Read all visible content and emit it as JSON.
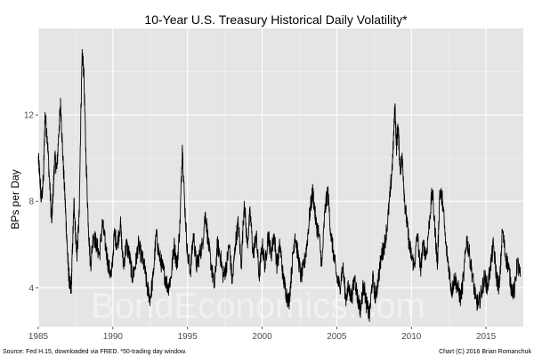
{
  "chart_data": {
    "type": "line",
    "title": "10-Year U.S. Treasury Historical Daily Volatility*",
    "xlabel": "",
    "ylabel": "BPs per Day",
    "xlim": [
      1985,
      2017.5
    ],
    "ylim": [
      2.2,
      16.0
    ],
    "x_ticks": [
      1985,
      1990,
      1995,
      2000,
      2005,
      2010,
      2015
    ],
    "x_tick_labels": [
      "1985",
      "1990",
      "1995",
      "2000",
      "2005",
      "2010",
      "2015"
    ],
    "y_ticks": [
      4,
      8,
      12
    ],
    "y_tick_labels": [
      "4",
      "8",
      "12"
    ],
    "grid": true,
    "legend": "none",
    "line_color": "#000000",
    "panel_color": "#e5e5e5",
    "series": [
      {
        "x": [
          1985.0,
          1985.1,
          1985.2,
          1985.35,
          1985.45,
          1985.6,
          1985.75,
          1985.9,
          1986.0,
          1986.1,
          1986.25,
          1986.4,
          1986.5,
          1986.65,
          1986.8,
          1986.9,
          1987.0,
          1987.1,
          1987.2,
          1987.3,
          1987.4,
          1987.5,
          1987.6,
          1987.75,
          1987.85,
          1987.95,
          1988.05,
          1988.2,
          1988.35,
          1988.5,
          1988.7,
          1988.9,
          1989.1,
          1989.3,
          1989.5,
          1989.7,
          1989.9,
          1990.1,
          1990.3,
          1990.5,
          1990.7,
          1990.9,
          1991.1,
          1991.3,
          1991.5,
          1991.7,
          1991.9,
          1992.1,
          1992.3,
          1992.5,
          1992.7,
          1992.9,
          1993.1,
          1993.3,
          1993.5,
          1993.7,
          1993.9,
          1994.1,
          1994.3,
          1994.5,
          1994.65,
          1994.8,
          1995.0,
          1995.2,
          1995.4,
          1995.6,
          1995.8,
          1996.0,
          1996.2,
          1996.4,
          1996.6,
          1996.8,
          1997.0,
          1997.2,
          1997.4,
          1997.6,
          1997.8,
          1998.0,
          1998.2,
          1998.4,
          1998.6,
          1998.8,
          1999.0,
          1999.2,
          1999.4,
          1999.6,
          1999.8,
          2000.0,
          2000.2,
          2000.4,
          2000.6,
          2000.8,
          2001.0,
          2001.2,
          2001.4,
          2001.6,
          2001.8,
          2002.0,
          2002.2,
          2002.4,
          2002.6,
          2002.8,
          2003.0,
          2003.2,
          2003.4,
          2003.6,
          2003.8,
          2004.0,
          2004.2,
          2004.4,
          2004.6,
          2004.8,
          2005.0,
          2005.2,
          2005.4,
          2005.6,
          2005.8,
          2006.0,
          2006.2,
          2006.4,
          2006.6,
          2006.8,
          2007.0,
          2007.2,
          2007.4,
          2007.6,
          2007.8,
          2008.0,
          2008.2,
          2008.4,
          2008.6,
          2008.75,
          2008.9,
          2009.0,
          2009.1,
          2009.25,
          2009.4,
          2009.55,
          2009.7,
          2009.85,
          2010.0,
          2010.2,
          2010.4,
          2010.6,
          2010.8,
          2011.0,
          2011.2,
          2011.4,
          2011.6,
          2011.75,
          2011.9,
          2012.1,
          2012.3,
          2012.5,
          2012.7,
          2012.9,
          2013.1,
          2013.3,
          2013.5,
          2013.7,
          2013.9,
          2014.1,
          2014.3,
          2014.5,
          2014.7,
          2014.9,
          2015.1,
          2015.3,
          2015.5,
          2015.7,
          2015.9,
          2016.1,
          2016.3,
          2016.5,
          2016.7,
          2016.9,
          2017.1,
          2017.3
        ],
        "y": [
          10.0,
          9.2,
          8.0,
          9.0,
          12.0,
          11.0,
          9.0,
          7.0,
          8.5,
          10.0,
          9.5,
          11.5,
          12.5,
          10.0,
          8.0,
          6.5,
          5.0,
          4.2,
          3.8,
          6.0,
          8.0,
          6.5,
          5.5,
          7.5,
          12.0,
          14.8,
          14.0,
          10.0,
          7.0,
          5.0,
          6.5,
          6.0,
          5.5,
          7.0,
          6.0,
          5.0,
          4.5,
          6.5,
          6.0,
          7.0,
          5.0,
          6.0,
          5.5,
          4.5,
          5.0,
          6.0,
          5.5,
          5.0,
          4.0,
          3.5,
          4.5,
          6.5,
          5.5,
          5.0,
          4.5,
          4.0,
          4.5,
          6.0,
          5.0,
          7.0,
          10.6,
          8.0,
          5.5,
          4.8,
          6.5,
          5.0,
          5.5,
          6.0,
          7.5,
          6.0,
          5.0,
          4.0,
          6.0,
          5.5,
          4.5,
          5.0,
          6.0,
          4.2,
          6.0,
          7.0,
          5.0,
          8.0,
          6.0,
          7.5,
          5.5,
          6.5,
          4.5,
          6.0,
          5.0,
          6.5,
          5.5,
          6.5,
          5.0,
          6.0,
          4.5,
          3.8,
          3.3,
          5.0,
          6.5,
          5.5,
          4.5,
          5.0,
          6.0,
          7.5,
          8.5,
          7.0,
          6.5,
          5.0,
          7.5,
          8.5,
          6.5,
          5.5,
          4.5,
          4.0,
          5.0,
          3.5,
          4.0,
          3.5,
          4.5,
          3.5,
          3.0,
          4.2,
          3.2,
          2.7,
          4.5,
          3.5,
          4.5,
          5.5,
          6.0,
          7.0,
          8.5,
          10.0,
          12.5,
          10.5,
          11.5,
          9.5,
          10.0,
          8.0,
          7.0,
          6.0,
          5.5,
          5.0,
          6.5,
          4.8,
          6.0,
          5.5,
          7.0,
          8.5,
          6.5,
          5.0,
          8.5,
          8.0,
          6.0,
          5.0,
          3.8,
          4.5,
          4.0,
          3.5,
          4.5,
          6.3,
          5.5,
          4.5,
          3.5,
          3.2,
          3.8,
          4.5,
          4.0,
          5.0,
          6.0,
          4.5,
          4.0,
          6.7,
          5.5,
          5.0,
          4.0,
          3.8,
          5.2,
          4.5
        ]
      }
    ]
  },
  "watermark": "BondEconomics.com",
  "footnote_left": "Source: Fed H.15, downloaded via FRED. *50-trading day window.",
  "footnote_right": "Chart (C) 2016 Brian Romanchuk"
}
